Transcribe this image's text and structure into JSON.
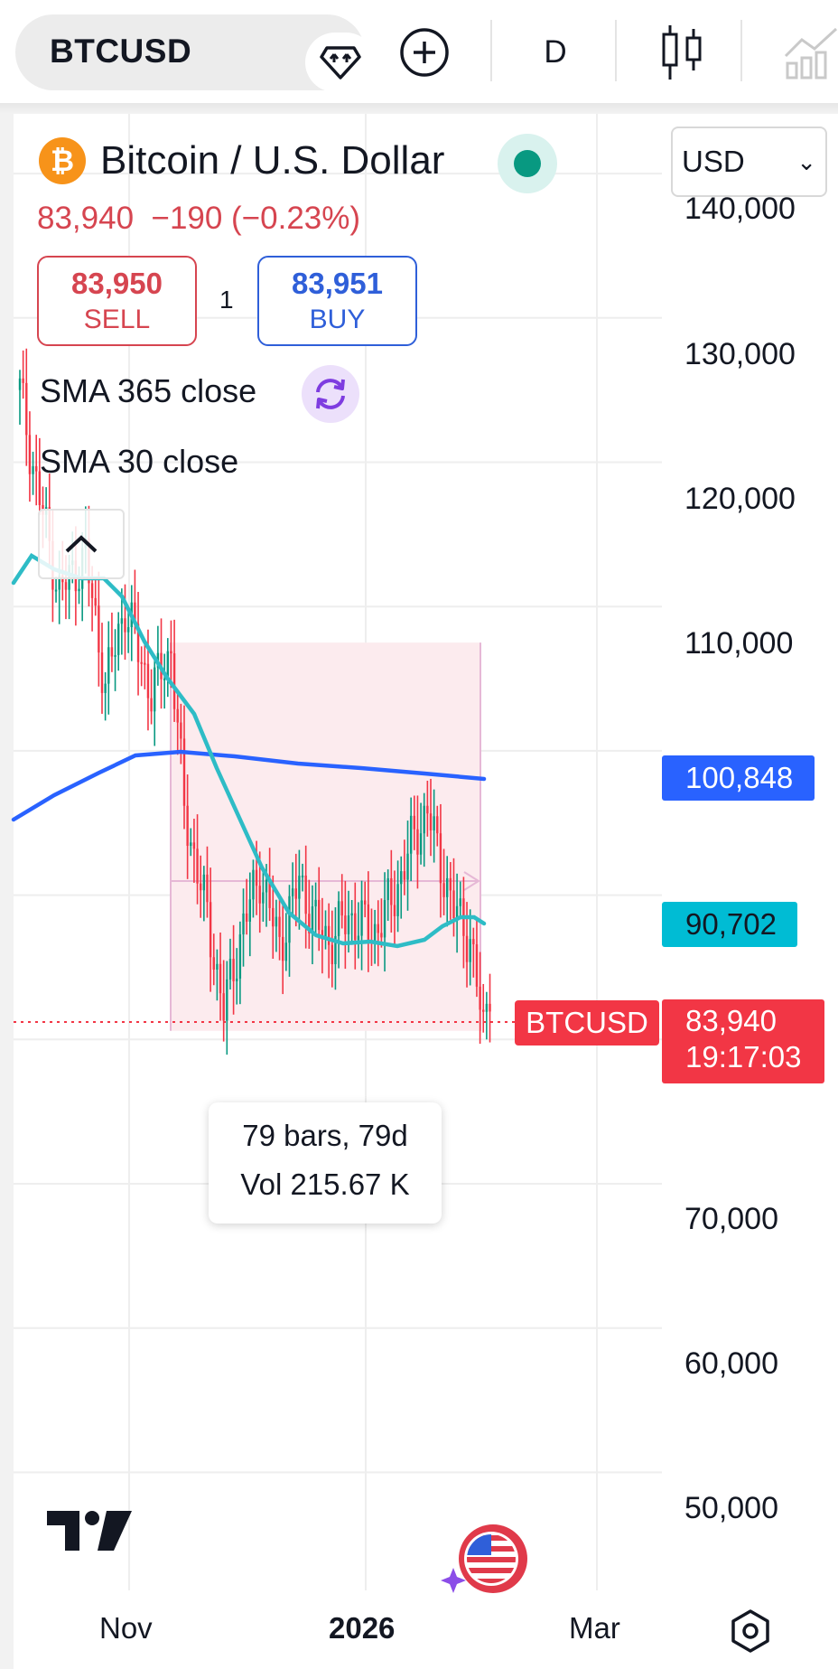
{
  "toolbar": {
    "symbol": "BTCUSD",
    "interval": "D",
    "icons": [
      "gem-icon",
      "plus-circle-icon",
      "candlestick-icon",
      "compare-chart-icon"
    ]
  },
  "legend": {
    "title": "Bitcoin / U.S. Dollar",
    "logo_glyph": "₿",
    "price_line": "83,940  −190 (−0.23%)",
    "sell": {
      "value": "83,950",
      "label": "SELL"
    },
    "spread": "1",
    "buy": {
      "value": "83,951",
      "label": "BUY"
    },
    "currency": "USD",
    "indicators": [
      "SMA 365 close",
      "SMA 30 close"
    ]
  },
  "price_scale": {
    "labels": [
      "140,000",
      "130,000",
      "120,000",
      "110,000",
      "70,000",
      "60,000",
      "50,000"
    ],
    "sma365_tag": "100,848",
    "sma30_tag": "90,702",
    "last_price": "83,940",
    "countdown": "19:17:03",
    "symbol_tag": "BTCUSD"
  },
  "measure": {
    "bars": "79 bars, 79d",
    "volume": "Vol 215.67 K"
  },
  "time_scale": {
    "labels": [
      "Nov",
      "2026",
      "Mar"
    ]
  },
  "colors": {
    "up": "#089981",
    "down": "#f23645",
    "sma365": "#2962ff",
    "sma30": "#2ebcc6",
    "measure_fill": "#fcebee",
    "measure_border": "#e6b8d6"
  },
  "chart_data": {
    "type": "candlestick",
    "symbol": "BTCUSD",
    "interval": "D",
    "last_price": 83940,
    "change": -190,
    "change_pct": -0.23,
    "ylim": [
      48000,
      145000
    ],
    "y_ticks": [
      50000,
      60000,
      70000,
      110000,
      120000,
      130000,
      140000
    ],
    "x_ticks": [
      "Nov",
      "2026",
      "Mar"
    ],
    "series": [
      {
        "name": "SMA 365 close",
        "last": 100848
      },
      {
        "name": "SMA 30 close",
        "last": 90702
      }
    ],
    "measure": {
      "bars": 79,
      "days": 79,
      "volume": "215.67 K",
      "high": 107500,
      "low": 80600
    },
    "grid": true
  }
}
